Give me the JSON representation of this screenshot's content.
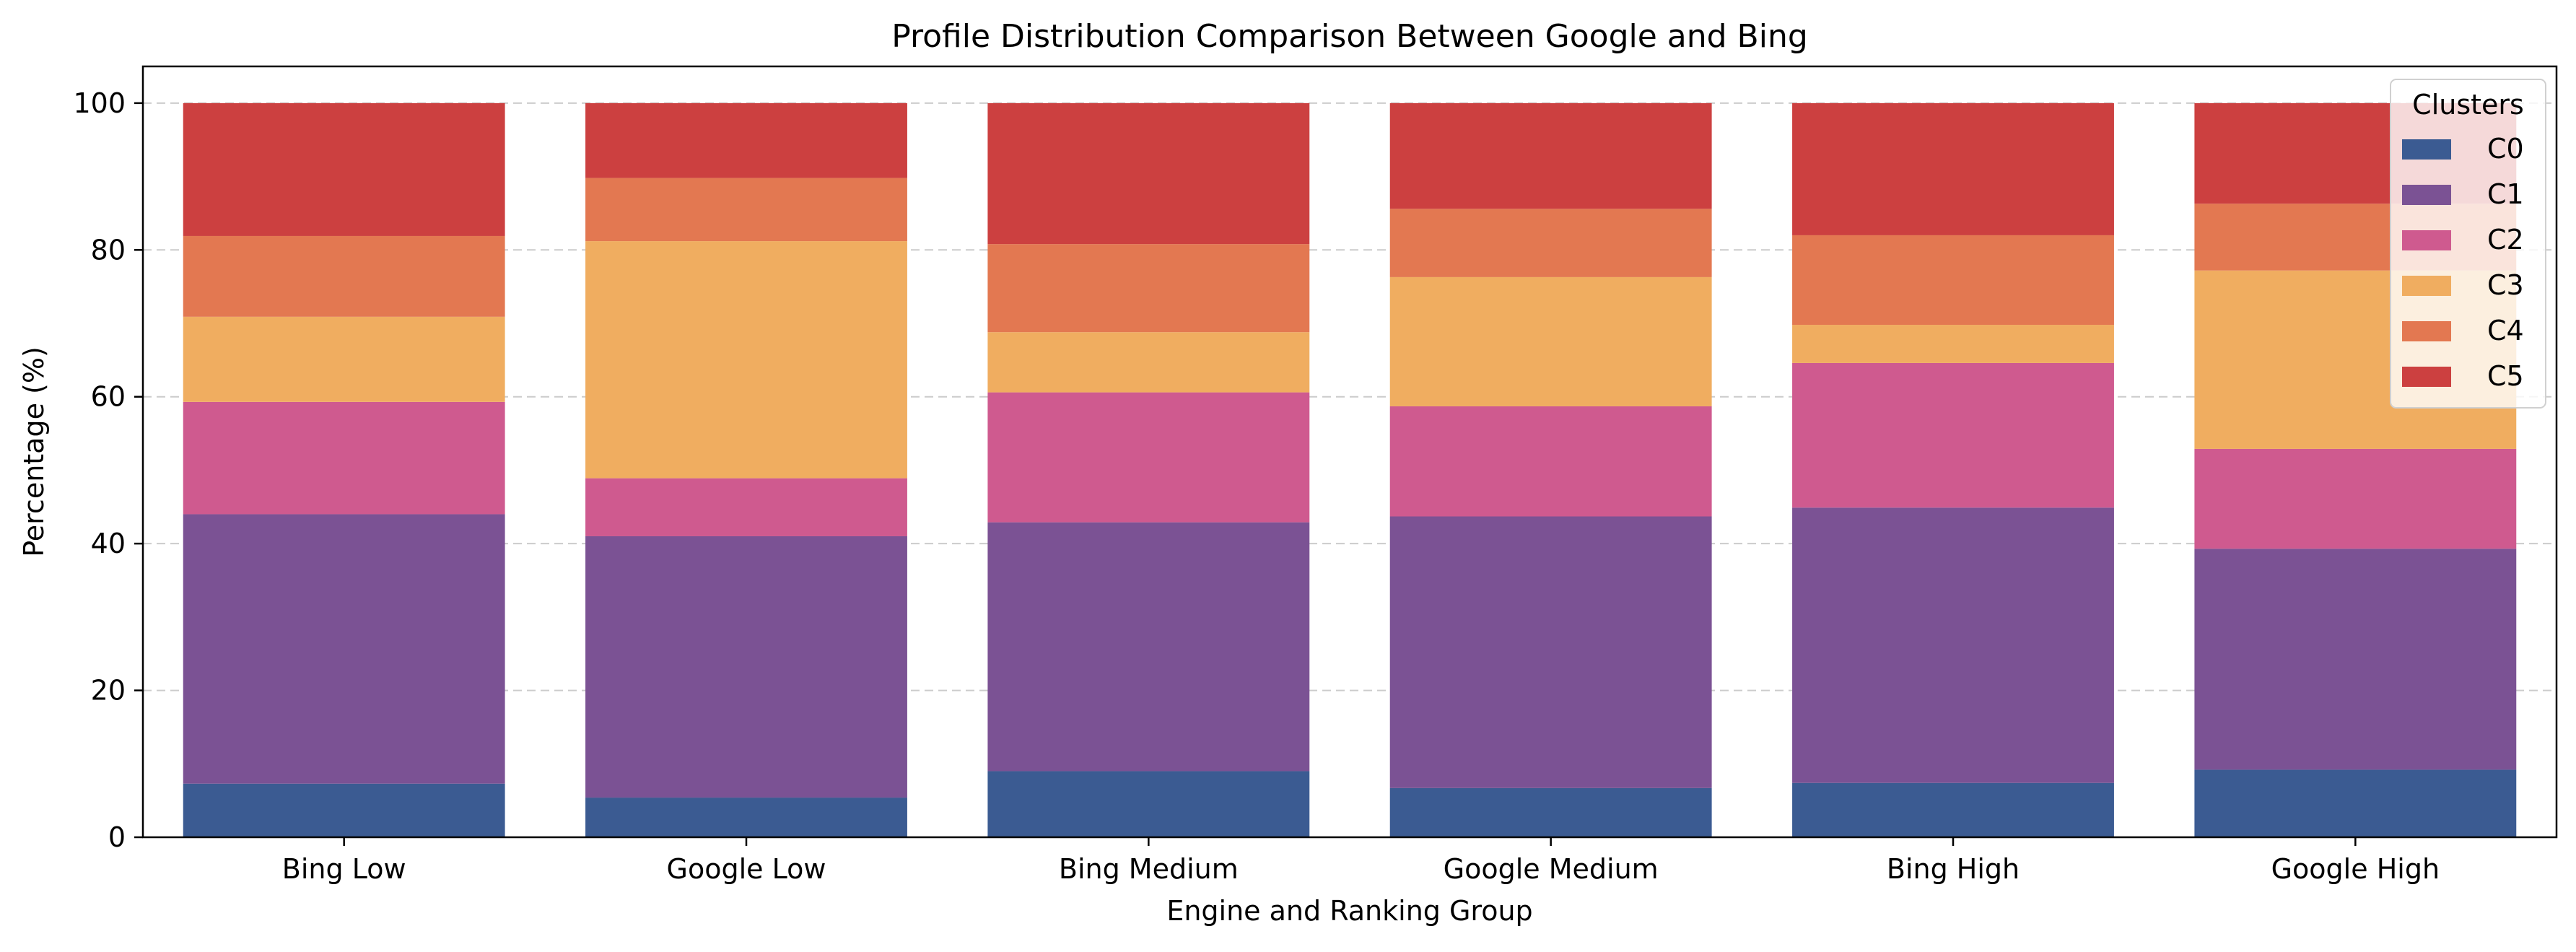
{
  "chart_data": {
    "type": "bar",
    "stacked": true,
    "title": "Profile Distribution Comparison Between Google and Bing",
    "xlabel": "Engine and Ranking Group",
    "ylabel": "Percentage (%)",
    "ylim": [
      0,
      105
    ],
    "yticks": [
      0,
      20,
      40,
      60,
      80,
      100
    ],
    "grid": "y-dashed",
    "categories": [
      "Bing Low",
      "Google Low",
      "Bing Medium",
      "Google Medium",
      "Bing High",
      "Google High"
    ],
    "legend": {
      "title": "Clusters",
      "placement": "top-right"
    },
    "series": [
      {
        "name": "C0",
        "color": "#3b5b92",
        "values": [
          7.3,
          5.4,
          9.0,
          6.7,
          7.4,
          9.2
        ]
      },
      {
        "name": "C1",
        "color": "#7b5294",
        "values": [
          36.7,
          35.6,
          33.9,
          37.0,
          37.5,
          30.1
        ]
      },
      {
        "name": "C2",
        "color": "#cf5a8f",
        "values": [
          15.3,
          7.9,
          17.7,
          15.0,
          19.7,
          13.6
        ]
      },
      {
        "name": "C3",
        "color": "#f0ad60",
        "values": [
          11.6,
          32.3,
          8.2,
          17.6,
          5.2,
          24.3
        ]
      },
      {
        "name": "C4",
        "color": "#e37851",
        "values": [
          11.0,
          8.6,
          12.0,
          9.3,
          12.2,
          9.1
        ]
      },
      {
        "name": "C5",
        "color": "#cc4040",
        "values": [
          18.1,
          10.2,
          19.2,
          14.4,
          18.0,
          13.7
        ]
      }
    ]
  }
}
